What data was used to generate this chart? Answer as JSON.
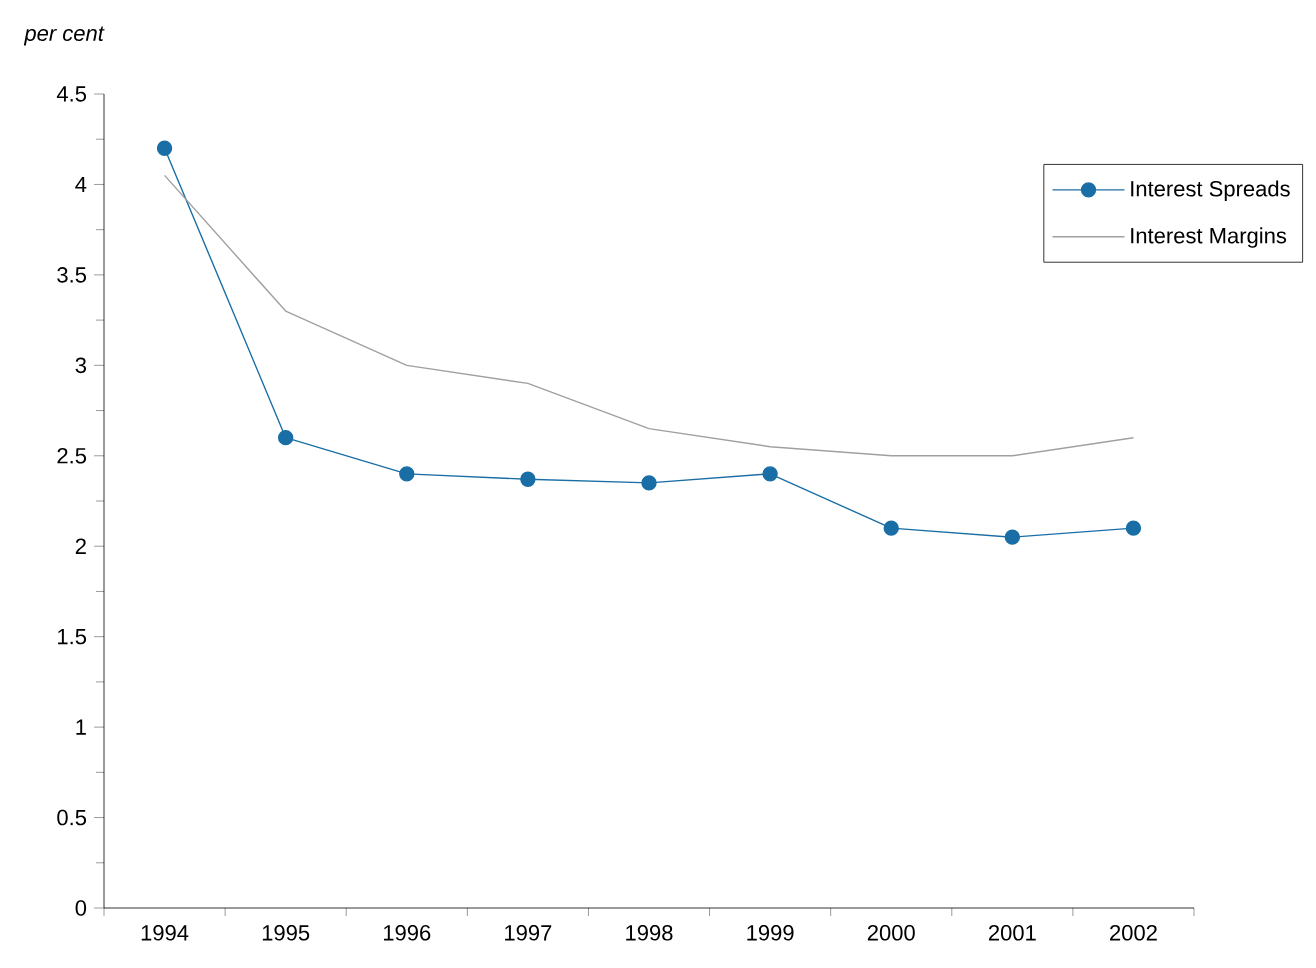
{
  "chart_data": {
    "type": "line",
    "ylabel": "per cent",
    "categories": [
      "1994",
      "1995",
      "1996",
      "1997",
      "1998",
      "1999",
      "2000",
      "2001",
      "2002"
    ],
    "series": [
      {
        "name": "Interest Spreads",
        "color": "#1a6ea6",
        "marker": "circle",
        "values": [
          4.2,
          2.6,
          2.4,
          2.37,
          2.35,
          2.4,
          2.1,
          2.05,
          2.1
        ]
      },
      {
        "name": "Interest Margins",
        "color": "#a0a0a0",
        "marker": "none",
        "values": [
          4.05,
          3.3,
          3.0,
          2.9,
          2.65,
          2.55,
          2.5,
          2.5,
          2.6
        ]
      }
    ],
    "ylim": [
      0,
      4.5
    ],
    "yticks": [
      0,
      0.5,
      1,
      1.5,
      2,
      2.5,
      3,
      3.5,
      4,
      4.5
    ],
    "grid": false,
    "legend": "top right"
  }
}
